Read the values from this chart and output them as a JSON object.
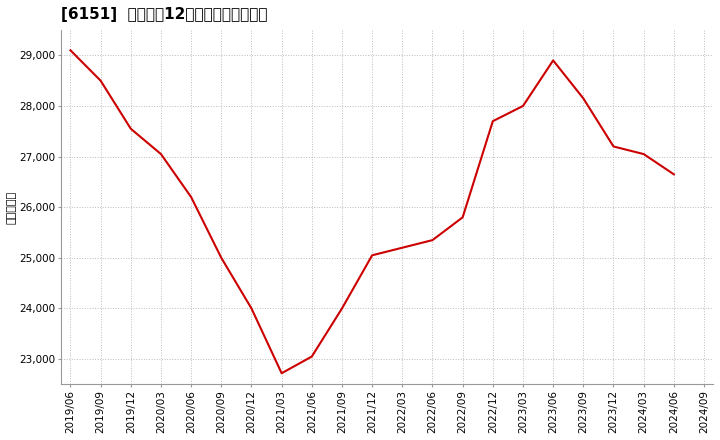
{
  "title": "[6151]  売上高の12か月移動合計の推移",
  "ylabel": "（百万円）",
  "line_color": "#cc0000",
  "background_color": "#ffffff",
  "plot_bg_color": "#ffffff",
  "grid_color": "#bbbbbb",
  "x_labels": [
    "2019/06",
    "2019/09",
    "2019/12",
    "2020/03",
    "2020/06",
    "2020/09",
    "2020/12",
    "2021/03",
    "2021/06",
    "2021/09",
    "2021/12",
    "2022/03",
    "2022/06",
    "2022/09",
    "2022/12",
    "2023/03",
    "2023/06",
    "2023/09",
    "2023/12",
    "2024/03",
    "2024/06",
    "2024/09"
  ],
  "values": [
    29100,
    28500,
    27550,
    27050,
    26200,
    25000,
    24000,
    22720,
    23050,
    24000,
    25050,
    25200,
    25350,
    25800,
    27700,
    28000,
    28900,
    28150,
    27200,
    27050,
    26650,
    null
  ],
  "ylim_min": 22500,
  "ylim_max": 29500,
  "yticks": [
    23000,
    24000,
    25000,
    26000,
    27000,
    28000,
    29000
  ],
  "title_fontsize": 11,
  "axis_fontsize": 7.5,
  "ylabel_fontsize": 8,
  "linewidth": 1.5
}
